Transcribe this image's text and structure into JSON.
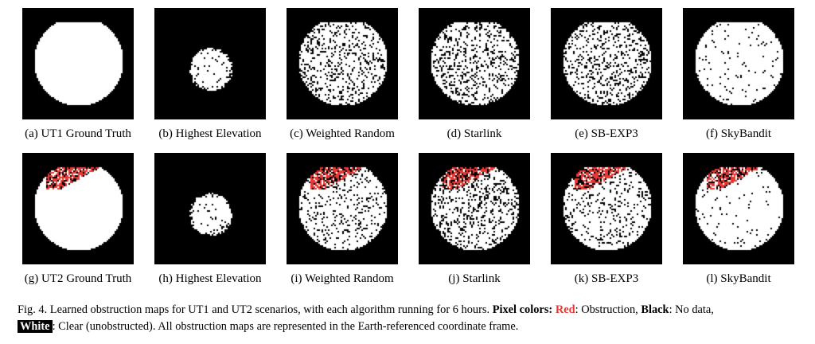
{
  "panels": [
    {
      "label": "(a) UT1 Ground Truth",
      "kind": "dome",
      "size": "large",
      "noise": 0,
      "obstruction": 0
    },
    {
      "label": "(b) Highest Elevation",
      "kind": "blob",
      "size": "small",
      "noise": 0.06,
      "obstruction": 0
    },
    {
      "label": "(c) Weighted Random",
      "kind": "dome",
      "size": "large",
      "noise": 0.18,
      "obstruction": 0
    },
    {
      "label": "(d) Starlink",
      "kind": "dome",
      "size": "large",
      "noise": 0.22,
      "obstruction": 0
    },
    {
      "label": "(e) SB-EXP3",
      "kind": "dome",
      "size": "large",
      "noise": 0.2,
      "obstruction": 0
    },
    {
      "label": "(f) SkyBandit",
      "kind": "dome",
      "size": "large",
      "noise": 0.04,
      "obstruction": 0
    },
    {
      "label": "(g) UT2 Ground Truth",
      "kind": "dome",
      "size": "large",
      "noise": 0,
      "obstruction": 1
    },
    {
      "label": "(h) Highest Elevation",
      "kind": "blob",
      "size": "small",
      "noise": 0.06,
      "obstruction": 0
    },
    {
      "label": "(i) Weighted Random",
      "kind": "dome",
      "size": "large",
      "noise": 0.12,
      "obstruction": 1
    },
    {
      "label": "(j) Starlink",
      "kind": "dome",
      "size": "large",
      "noise": 0.2,
      "obstruction": 1
    },
    {
      "label": "(k) SB-EXP3",
      "kind": "dome",
      "size": "large",
      "noise": 0.12,
      "obstruction": 1
    },
    {
      "label": "(l) SkyBandit",
      "kind": "dome",
      "size": "large",
      "noise": 0.04,
      "obstruction": 1
    }
  ],
  "caption": {
    "lead": "Fig. 4.  Learned obstruction maps for UT1 and UT2 scenarios, with each algorithm running for 6 hours. ",
    "pixel_colors_label": "Pixel colors:",
    "red_label": "Red",
    "red_desc": ": Obstruction, ",
    "black_label": "Black",
    "black_desc": ": No data,",
    "white_label": "White",
    "white_desc": ": Clear (unobstructed). All obstruction maps are represented in the Earth-referenced coordinate frame."
  },
  "colors": {
    "obstruction": "#e53935",
    "no_data": "#000000",
    "clear": "#ffffff"
  }
}
